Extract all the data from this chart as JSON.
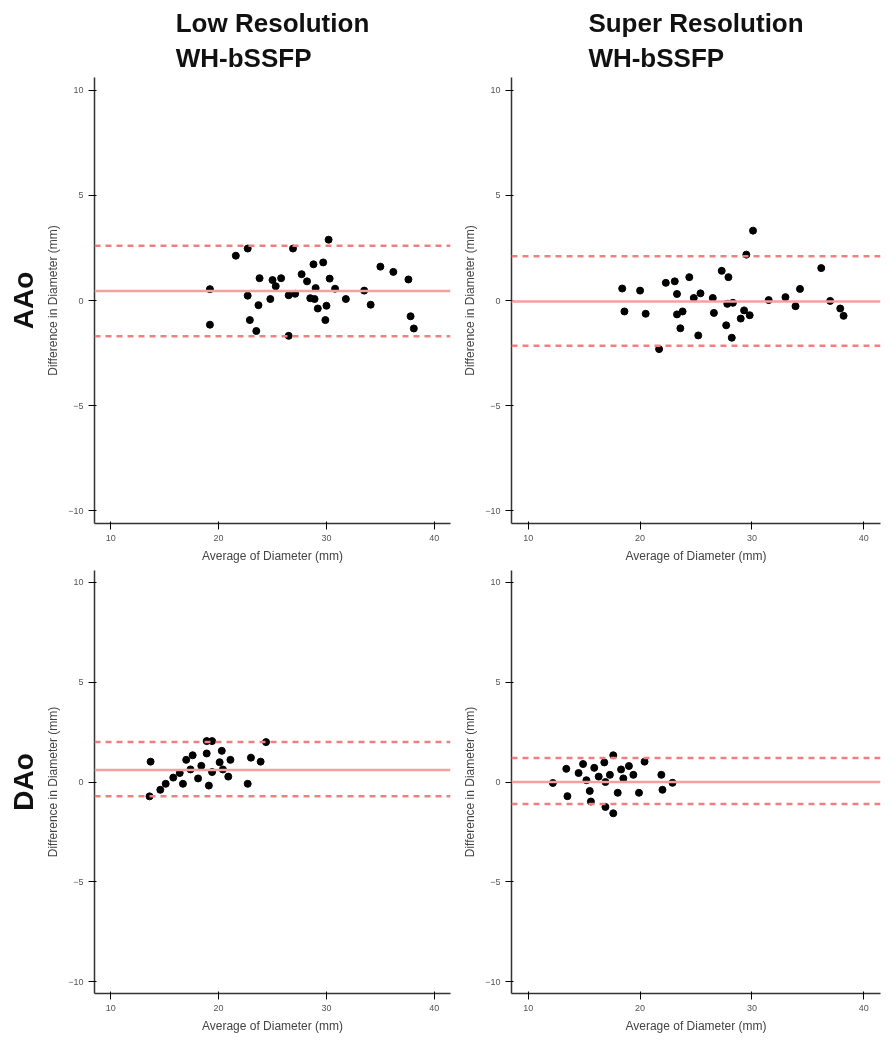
{
  "chart_data": [
    {
      "type": "scatter",
      "title": "Low Resolution\nWH-bSSFP",
      "annotations": [
        "AAo"
      ],
      "xlabel": "Average of Diameter (mm)",
      "ylabel": "Difference in Diameter (mm)",
      "xlim": [
        8.5,
        41.5
      ],
      "ylim": [
        -10.6,
        10.6
      ],
      "xticks": [
        10,
        20,
        30,
        40
      ],
      "yticks": [
        -10,
        -5,
        0,
        5,
        10
      ],
      "marker": "circle",
      "series": [
        {
          "color": "#000000",
          "x": [
            19.2,
            19.2,
            21.6,
            22.7,
            22.7,
            22.9,
            23.5,
            23.7,
            23.8,
            24.8,
            25.0,
            25.3,
            25.8,
            26.5,
            26.5,
            26.9,
            27.1,
            27.7,
            28.2,
            28.5,
            28.8,
            29.0,
            28.9,
            29.2,
            29.7,
            30.0,
            29.9,
            30.2,
            30.3,
            30.8,
            31.8,
            33.5,
            34.1,
            35.0,
            36.2,
            37.6,
            37.8,
            38.1
          ],
          "values": [
            0.54,
            -1.15,
            2.13,
            2.47,
            0.23,
            -0.93,
            -1.45,
            -0.22,
            1.06,
            0.07,
            0.97,
            0.68,
            1.06,
            0.25,
            -1.68,
            2.47,
            0.32,
            1.25,
            0.91,
            0.11,
            1.72,
            0.59,
            0.07,
            -0.38,
            1.81,
            -0.25,
            -0.93,
            2.89,
            1.04,
            0.56,
            0.07,
            0.47,
            -0.2,
            1.61,
            1.36,
            1.0,
            -0.75,
            -1.33
          ]
        }
      ],
      "ref_lines": [
        {
          "axis": "y",
          "value": 0.45,
          "color": "#f4a0a0",
          "line_style": "solid"
        },
        {
          "axis": "y",
          "value": 2.6,
          "color": "#f08080",
          "line_style": "dashed"
        },
        {
          "axis": "y",
          "value": -1.7,
          "color": "#f08080",
          "line_style": "dashed"
        }
      ]
    },
    {
      "type": "scatter",
      "title": "Super Resolution\nWH-bSSFP",
      "xlabel": "Average of Diameter (mm)",
      "ylabel": "Difference in Diameter (mm)",
      "xlim": [
        8.5,
        41.5
      ],
      "ylim": [
        -10.6,
        10.6
      ],
      "xticks": [
        10,
        20,
        30,
        40
      ],
      "yticks": [
        -10,
        -5,
        0,
        5,
        10
      ],
      "marker": "circle",
      "series": [
        {
          "color": "#000000",
          "x": [
            18.4,
            18.6,
            20.0,
            20.5,
            21.7,
            22.3,
            23.1,
            23.3,
            23.3,
            23.8,
            23.6,
            24.4,
            24.8,
            25.4,
            25.2,
            26.5,
            26.6,
            27.3,
            27.9,
            27.8,
            28.3,
            27.7,
            28.2,
            29.0,
            29.3,
            29.8,
            29.5,
            30.1,
            31.5,
            33.0,
            33.9,
            34.3,
            36.2,
            37.0,
            37.9,
            38.2
          ],
          "values": [
            0.57,
            -0.52,
            0.47,
            -0.63,
            -2.31,
            0.84,
            0.91,
            0.31,
            -0.66,
            -0.52,
            -1.32,
            1.11,
            0.12,
            0.34,
            -1.66,
            0.12,
            -0.59,
            1.41,
            1.11,
            -0.16,
            -0.11,
            -1.18,
            -1.77,
            -0.86,
            -0.47,
            -0.7,
            2.18,
            3.32,
            0.02,
            0.16,
            -0.27,
            0.55,
            1.54,
            -0.02,
            -0.38,
            -0.73
          ]
        }
      ],
      "ref_lines": [
        {
          "axis": "y",
          "value": -0.05,
          "color": "#f4a0a0",
          "line_style": "solid"
        },
        {
          "axis": "y",
          "value": 2.1,
          "color": "#f08080",
          "line_style": "dashed"
        },
        {
          "axis": "y",
          "value": -2.15,
          "color": "#f08080",
          "line_style": "dashed"
        }
      ]
    },
    {
      "type": "scatter",
      "annotations": [
        "DAo"
      ],
      "xlabel": "Average of Diameter (mm)",
      "ylabel": "Difference in Diameter (mm)",
      "xlim": [
        8.5,
        41.5
      ],
      "ylim": [
        -10.6,
        10.6
      ],
      "xticks": [
        10,
        20,
        30,
        40
      ],
      "yticks": [
        -10,
        -5,
        0,
        5,
        10
      ],
      "marker": "circle",
      "series": [
        {
          "color": "#000000",
          "x": [
            13.7,
            13.6,
            14.6,
            15.1,
            15.8,
            16.4,
            16.7,
            17.0,
            17.6,
            17.4,
            18.1,
            18.4,
            18.9,
            18.9,
            19.1,
            19.4,
            19.4,
            20.1,
            20.3,
            20.4,
            20.9,
            21.1,
            22.7,
            23.0,
            23.9,
            24.4
          ],
          "values": [
            1.02,
            -0.72,
            -0.39,
            -0.09,
            0.22,
            0.45,
            -0.09,
            1.11,
            1.34,
            0.63,
            0.18,
            0.81,
            2.05,
            1.43,
            -0.18,
            2.05,
            0.5,
            0.99,
            1.56,
            0.63,
            0.27,
            1.11,
            -0.09,
            1.22,
            1.02,
            2.0
          ]
        }
      ],
      "ref_lines": [
        {
          "axis": "y",
          "value": 0.6,
          "color": "#f4a0a0",
          "line_style": "solid"
        },
        {
          "axis": "y",
          "value": 2.0,
          "color": "#f08080",
          "line_style": "dashed"
        },
        {
          "axis": "y",
          "value": -0.72,
          "color": "#f08080",
          "line_style": "dashed"
        }
      ]
    },
    {
      "type": "scatter",
      "xlabel": "Average of Diameter (mm)",
      "ylabel": "Difference in Diameter (mm)",
      "xlim": [
        8.5,
        41.5
      ],
      "ylim": [
        -10.6,
        10.6
      ],
      "xticks": [
        10,
        20,
        30,
        40
      ],
      "yticks": [
        -10,
        -5,
        0,
        5,
        10
      ],
      "marker": "circle",
      "series": [
        {
          "color": "#000000",
          "x": [
            12.2,
            13.4,
            13.5,
            14.5,
            14.9,
            15.2,
            15.5,
            15.6,
            15.9,
            16.3,
            16.8,
            16.9,
            16.9,
            17.3,
            17.6,
            17.6,
            18.0,
            18.3,
            18.5,
            19.0,
            19.4,
            19.9,
            20.4,
            21.9,
            22.0,
            22.9
          ],
          "values": [
            -0.05,
            0.66,
            -0.71,
            0.45,
            0.9,
            0.09,
            -0.45,
            -0.98,
            0.71,
            0.27,
            0.98,
            0.0,
            -1.25,
            0.36,
            1.34,
            -1.57,
            -0.54,
            0.63,
            0.18,
            0.8,
            0.36,
            -0.54,
            1.02,
            0.36,
            -0.39,
            -0.04
          ]
        }
      ],
      "ref_lines": [
        {
          "axis": "y",
          "value": 0.0,
          "color": "#f4a0a0",
          "line_style": "solid"
        },
        {
          "axis": "y",
          "value": 1.2,
          "color": "#f08080",
          "line_style": "dashed"
        },
        {
          "axis": "y",
          "value": -1.1,
          "color": "#f08080",
          "line_style": "dashed"
        }
      ]
    }
  ]
}
